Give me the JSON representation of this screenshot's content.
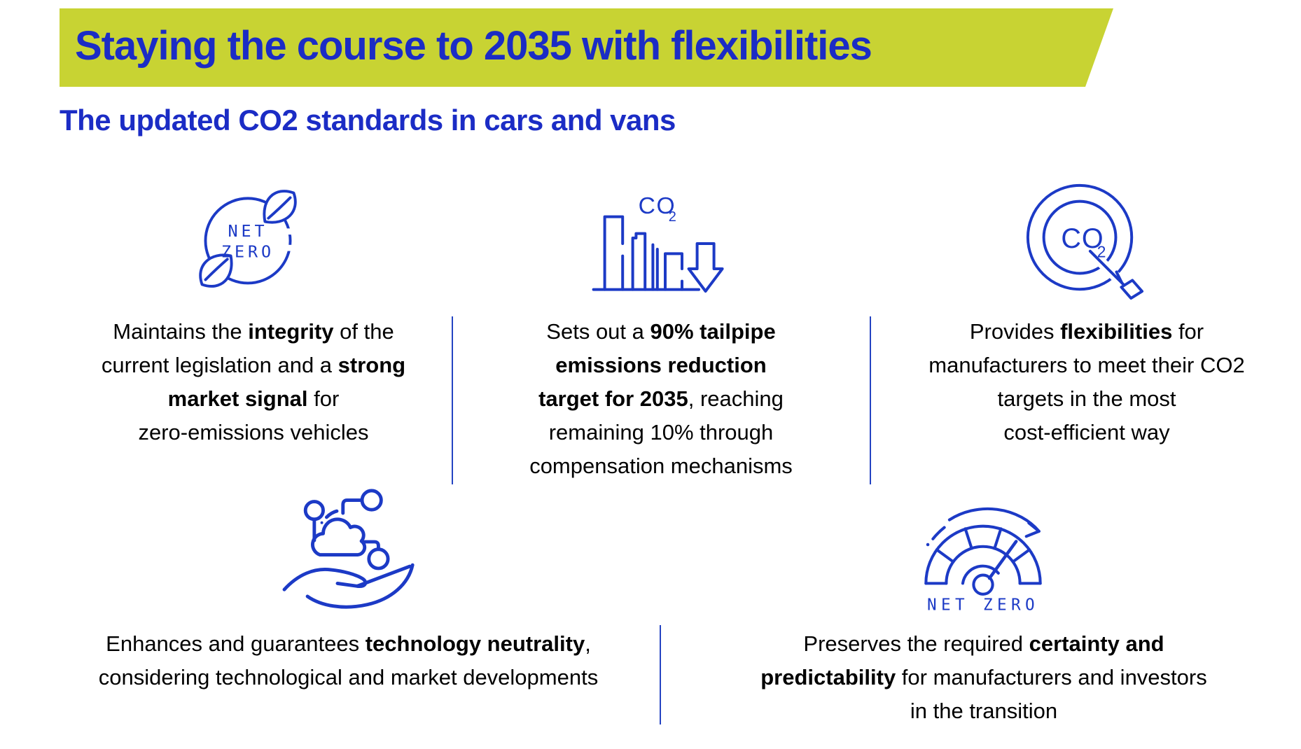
{
  "banner": {
    "title": "Staying the course to 2035 with flexibilities"
  },
  "subtitle": "The updated CO2 standards in cars and vans",
  "colors": {
    "green": "#c8d333",
    "blue": "#1b2cc5",
    "icon": "#1c3ac6",
    "ink": "#000000",
    "divider": "#2443c2"
  },
  "icons": {
    "net_zero_circle": {
      "line1": "NET",
      "line2": "ZERO"
    },
    "co2_bars": {
      "label": "CO",
      "sub": "2"
    },
    "co2_target": {
      "label": "CO",
      "sub": "2"
    },
    "gauge": {
      "label": "NET ZERO"
    }
  },
  "cards": [
    {
      "id": "integrity",
      "segments": [
        {
          "t": "Maintains the "
        },
        {
          "t": "integrity",
          "b": true
        },
        {
          "t": " of the\ncurrent legislation and a "
        },
        {
          "t": "strong\nmarket signal",
          "b": true
        },
        {
          "t": " for\nzero-emissions vehicles"
        }
      ]
    },
    {
      "id": "tailpipe-target",
      "segments": [
        {
          "t": "Sets out a "
        },
        {
          "t": "90% tailpipe\nemissions reduction\ntarget for 2035",
          "b": true
        },
        {
          "t": ", reaching\nremaining 10% through\ncompensation mechanisms"
        }
      ]
    },
    {
      "id": "flexibilities",
      "segments": [
        {
          "t": "Provides "
        },
        {
          "t": "flexibilities",
          "b": true
        },
        {
          "t": " for\nmanufacturers to meet their CO2\ntargets in the most\ncost-efficient way"
        }
      ]
    },
    {
      "id": "technology-neutrality",
      "segments": [
        {
          "t": "Enhances and guarantees "
        },
        {
          "t": "technology neutrality",
          "b": true
        },
        {
          "t": ",\nconsidering technological and market developments"
        }
      ]
    },
    {
      "id": "certainty",
      "segments": [
        {
          "t": "Preserves the required "
        },
        {
          "t": "certainty and\npredictability",
          "b": true
        },
        {
          "t": " for manufacturers and investors\nin the transition"
        }
      ]
    }
  ]
}
